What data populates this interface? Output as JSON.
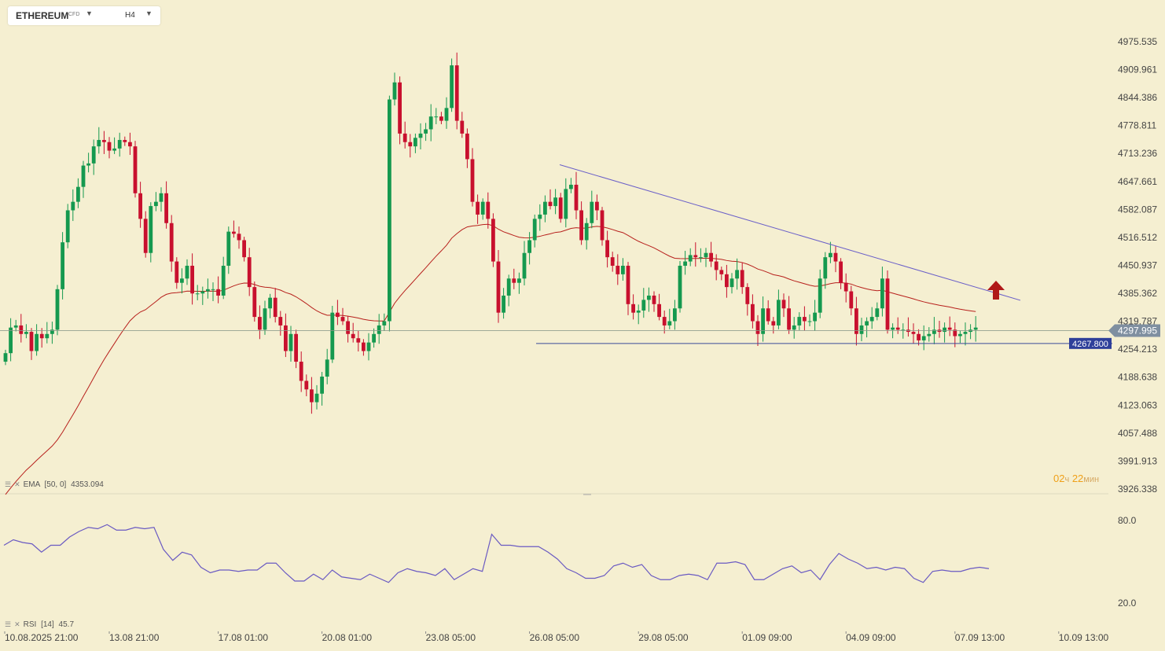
{
  "toolbar": {
    "symbol": "ETHEREUM",
    "symbol_badge": "CFD",
    "timeframe": "H4",
    "dropdown_icon": "chevron-down-icon"
  },
  "countdown": {
    "hours": "02",
    "hours_unit": "ч",
    "minutes": "22",
    "minutes_unit": "мин"
  },
  "indicators": {
    "ema": {
      "name": "EMA",
      "params": "[50, 0]",
      "value": "4353.094"
    },
    "rsi": {
      "name": "RSI",
      "params": "[14]",
      "value": "45.7"
    }
  },
  "colors": {
    "background": "#f5efd1",
    "bull": "#15994f",
    "bear": "#c8102e",
    "ema": "#b7201c",
    "rsi": "#6a5ac2",
    "trendline": "#6a5fc8",
    "support": "#3a4a9a",
    "arrow": "#b01818"
  },
  "chart_data": [
    {
      "type": "candlestick",
      "timeframe": "H4",
      "y_axis_ticks": [
        "4975.535",
        "4909.961",
        "4844.386",
        "4778.811",
        "4713.236",
        "4647.661",
        "4582.087",
        "4516.512",
        "4450.937",
        "4385.362",
        "4319.787",
        "4254.213",
        "4188.638",
        "4123.063",
        "4057.488",
        "3991.913",
        "3926.338"
      ],
      "ylim": [
        3926.338,
        4975.535
      ],
      "x_axis_ticks": [
        "10.08.2025  21:00",
        "13.08  21:00",
        "17.08  01:00",
        "20.08  01:00",
        "23.08  05:00",
        "26.08  05:00",
        "29.08  05:00",
        "01.09  09:00",
        "04.09  09:00",
        "07.09  13:00",
        "10.09  13:00"
      ],
      "current_price": "4297.995",
      "support_level": "4267.800",
      "close": [
        4245,
        4305,
        4310,
        4290,
        4295,
        4250,
        4290,
        4280,
        4290,
        4300,
        4395,
        4505,
        4580,
        4600,
        4635,
        4685,
        4690,
        4730,
        4745,
        4740,
        4720,
        4725,
        4745,
        4740,
        4730,
        4620,
        4560,
        4480,
        4590,
        4600,
        4620,
        4550,
        4460,
        4410,
        4420,
        4450,
        4385,
        4385,
        4390,
        4395,
        4395,
        4380,
        4450,
        4530,
        4525,
        4510,
        4470,
        4400,
        4330,
        4300,
        4350,
        4375,
        4330,
        4310,
        4250,
        4290,
        4225,
        4180,
        4160,
        4130,
        4150,
        4190,
        4230,
        4340,
        4330,
        4320,
        4290,
        4280,
        4270,
        4250,
        4270,
        4290,
        4310,
        4320,
        4840,
        4880,
        4760,
        4740,
        4730,
        4750,
        4760,
        4770,
        4800,
        4800,
        4790,
        4820,
        4920,
        4790,
        4760,
        4700,
        4600,
        4570,
        4600,
        4560,
        4460,
        4340,
        4380,
        4420,
        4410,
        4420,
        4480,
        4510,
        4560,
        4570,
        4600,
        4590,
        4610,
        4560,
        4630,
        4640,
        4580,
        4510,
        4550,
        4600,
        4580,
        4510,
        4470,
        4450,
        4430,
        4450,
        4360,
        4340,
        4345,
        4370,
        4380,
        4360,
        4330,
        4310,
        4320,
        4350,
        4450,
        4460,
        4475,
        4470,
        4470,
        4480,
        4460,
        4440,
        4430,
        4400,
        4420,
        4440,
        4400,
        4360,
        4320,
        4290,
        4350,
        4320,
        4310,
        4370,
        4350,
        4300,
        4310,
        4330,
        4320,
        4320,
        4340,
        4420,
        4470,
        4480,
        4460,
        4410,
        4390,
        4350,
        4290,
        4310,
        4320,
        4330,
        4350,
        4420,
        4300,
        4305,
        4300,
        4300,
        4295,
        4290,
        4275,
        4285,
        4290,
        4300,
        4295,
        4305,
        4300,
        4285,
        4290,
        4295,
        4300,
        4305
      ]
    },
    {
      "type": "line",
      "name": "EMA [50, 0]",
      "last_value": 4353.094
    },
    {
      "type": "line",
      "name": "RSI [14]",
      "y_axis_ticks": [
        "80.0",
        "20.0"
      ],
      "ylim": [
        20,
        80
      ],
      "last_value": 45.7,
      "values": [
        62,
        66,
        64,
        63,
        57,
        62,
        62,
        68,
        72,
        75,
        74,
        77,
        73,
        73,
        75,
        74,
        75,
        59,
        51,
        57,
        55,
        46,
        42,
        44,
        44,
        43,
        44,
        44,
        49,
        49,
        42,
        36,
        36,
        41,
        37,
        44,
        39,
        38,
        37,
        41,
        38,
        35,
        42,
        45,
        43,
        42,
        40,
        45,
        37,
        41,
        45,
        43,
        70,
        62,
        62,
        61,
        61,
        61,
        57,
        52,
        45,
        42,
        38,
        38,
        40,
        47,
        49,
        46,
        48,
        40,
        37,
        37,
        40,
        41,
        40,
        37,
        49,
        49,
        50,
        48,
        37,
        37,
        41,
        45,
        47,
        42,
        44,
        37,
        48,
        56,
        52,
        49,
        45,
        46,
        44,
        46,
        45,
        38,
        35,
        43,
        44,
        43,
        43,
        45,
        46,
        45
      ]
    }
  ]
}
